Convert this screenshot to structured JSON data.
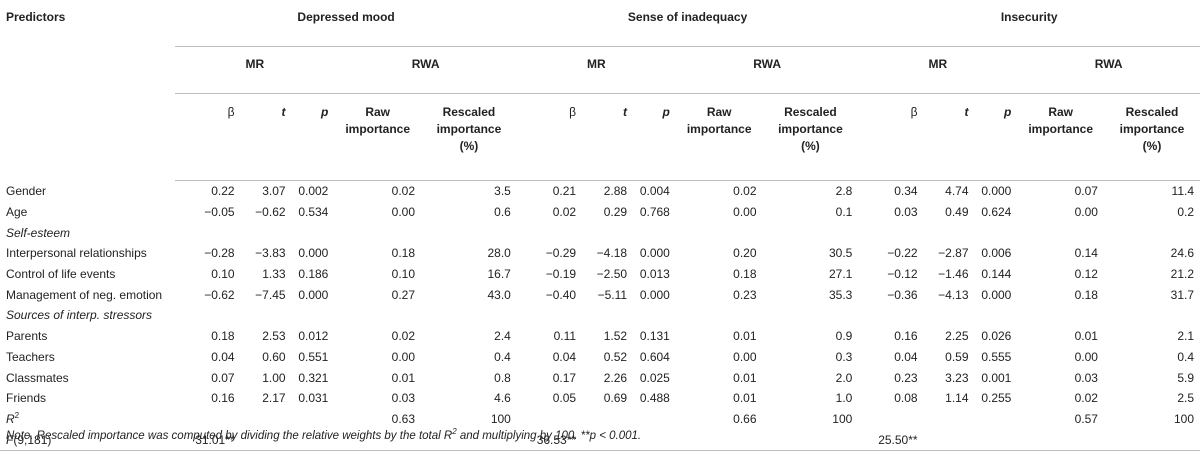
{
  "header": {
    "predictors": "Predictors",
    "groups": [
      "Depressed mood",
      "Sense of inadequacy",
      "Insecurity"
    ],
    "mr": "MR",
    "rwa": "RWA",
    "beta": "β",
    "t": "t",
    "p": "p",
    "raw_1": "Raw",
    "raw_2": "importance",
    "resc_1": "Rescaled",
    "resc_2": "importance",
    "resc_3": "(%)"
  },
  "rows": [
    {
      "label": "Gender",
      "d": [
        "0.22",
        "3.07",
        "0.002",
        "0.02",
        "3.5"
      ],
      "s": [
        "0.21",
        "2.88",
        "0.004",
        "0.02",
        "2.8"
      ],
      "i": [
        "0.34",
        "4.74",
        "0.000",
        "0.07",
        "11.4"
      ]
    },
    {
      "label": "Age",
      "d": [
        "−0.05",
        "−0.62",
        "0.534",
        "0.00",
        "0.6"
      ],
      "s": [
        "0.02",
        "0.29",
        "0.768",
        "0.00",
        "0.1"
      ],
      "i": [
        "0.03",
        "0.49",
        "0.624",
        "0.00",
        "0.2"
      ]
    },
    {
      "section": "Self-esteem"
    },
    {
      "label": "Interpersonal relationships",
      "d": [
        "−0.28",
        "−3.83",
        "0.000",
        "0.18",
        "28.0"
      ],
      "s": [
        "−0.29",
        "−4.18",
        "0.000",
        "0.20",
        "30.5"
      ],
      "i": [
        "−0.22",
        "−2.87",
        "0.006",
        "0.14",
        "24.6"
      ]
    },
    {
      "label": "Control of life events",
      "d": [
        "0.10",
        "1.33",
        "0.186",
        "0.10",
        "16.7"
      ],
      "s": [
        "−0.19",
        "−2.50",
        "0.013",
        "0.18",
        "27.1"
      ],
      "i": [
        "−0.12",
        "−1.46",
        "0.144",
        "0.12",
        "21.2"
      ]
    },
    {
      "label": "Management of neg. emotion",
      "d": [
        "−0.62",
        "−7.45",
        "0.000",
        "0.27",
        "43.0"
      ],
      "s": [
        "−0.40",
        "−5.11",
        "0.000",
        "0.23",
        "35.3"
      ],
      "i": [
        "−0.36",
        "−4.13",
        "0.000",
        "0.18",
        "31.7"
      ]
    },
    {
      "section": "Sources of interp. stressors"
    },
    {
      "label": "Parents",
      "d": [
        "0.18",
        "2.53",
        "0.012",
        "0.02",
        "2.4"
      ],
      "s": [
        "0.11",
        "1.52",
        "0.131",
        "0.01",
        "0.9"
      ],
      "i": [
        "0.16",
        "2.25",
        "0.026",
        "0.01",
        "2.1"
      ]
    },
    {
      "label": "Teachers",
      "d": [
        "0.04",
        "0.60",
        "0.551",
        "0.00",
        "0.4"
      ],
      "s": [
        "0.04",
        "0.52",
        "0.604",
        "0.00",
        "0.3"
      ],
      "i": [
        "0.04",
        "0.59",
        "0.555",
        "0.00",
        "0.4"
      ]
    },
    {
      "label": "Classmates",
      "d": [
        "0.07",
        "1.00",
        "0.321",
        "0.01",
        "0.8"
      ],
      "s": [
        "0.17",
        "2.26",
        "0.025",
        "0.01",
        "2.0"
      ],
      "i": [
        "0.23",
        "3.23",
        "0.001",
        "0.03",
        "5.9"
      ]
    },
    {
      "label": "Friends",
      "d": [
        "0.16",
        "2.17",
        "0.031",
        "0.03",
        "4.6"
      ],
      "s": [
        "0.05",
        "0.69",
        "0.488",
        "0.01",
        "1.0"
      ],
      "i": [
        "0.08",
        "1.14",
        "0.255",
        "0.02",
        "2.5"
      ]
    },
    {
      "label": "R",
      "sup": "2",
      "ital": true,
      "d": [
        "",
        "",
        "",
        "0.63",
        "100"
      ],
      "s": [
        "",
        "",
        "",
        "0.66",
        "100"
      ],
      "i": [
        "",
        "",
        "",
        "0.57",
        "100"
      ]
    },
    {
      "label": "F",
      "label_rest": "(9,181)",
      "ital": true,
      "last": true,
      "d": [
        "31.01**",
        "",
        "",
        "",
        ""
      ],
      "s": [
        "36.53**",
        "",
        "",
        "",
        ""
      ],
      "i": [
        "25.50**",
        "",
        "",
        "",
        ""
      ]
    }
  ],
  "note": "Note. Rescaled importance was computed by dividing the relative weights by the total R",
  "note_sup": "2",
  "note_rest": " and multiplying by 100. **p < 0.001."
}
